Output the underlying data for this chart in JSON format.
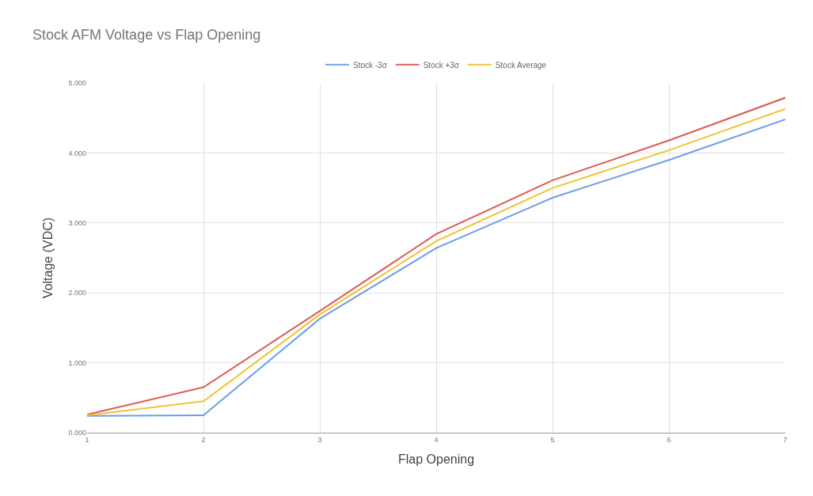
{
  "chart_data": {
    "type": "line",
    "title": "Stock AFM Voltage vs Flap Opening",
    "xlabel": "Flap Opening",
    "ylabel": "Voltage (VDC)",
    "x": [
      1,
      2,
      3,
      4,
      5,
      6,
      7
    ],
    "series": [
      {
        "name": "Stock -3σ",
        "color": "#6d9eeb",
        "values": [
          0.24,
          0.25,
          1.63,
          2.64,
          3.36,
          3.9,
          4.48
        ]
      },
      {
        "name": "Stock +3σ",
        "color": "#dd5b55",
        "values": [
          0.26,
          0.65,
          1.74,
          2.84,
          3.61,
          4.18,
          4.79
        ]
      },
      {
        "name": "Stock Average",
        "color": "#f1c232",
        "values": [
          0.25,
          0.45,
          1.69,
          2.74,
          3.5,
          4.04,
          4.63
        ]
      }
    ],
    "xlim": [
      1,
      7
    ],
    "xticks": [
      1,
      2,
      3,
      4,
      5,
      6,
      7
    ],
    "ylim": [
      0,
      5
    ],
    "yticks": [
      {
        "value": 0,
        "label": "0.000"
      },
      {
        "value": 1,
        "label": "1.000"
      },
      {
        "value": 2,
        "label": "2.000"
      },
      {
        "value": 3,
        "label": "3.000"
      },
      {
        "value": 4,
        "label": "4.000"
      },
      {
        "value": 5,
        "label": "5.000"
      }
    ],
    "grid": true,
    "legend": "top",
    "marker": "none",
    "line_style": "solid"
  }
}
